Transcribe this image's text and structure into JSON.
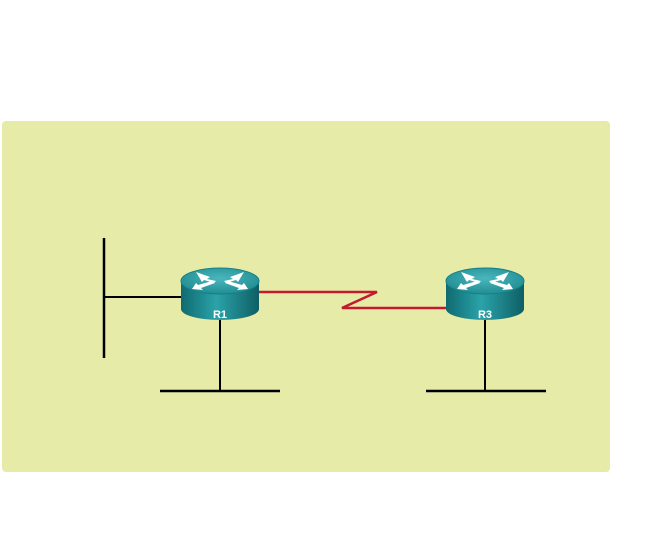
{
  "diagram": {
    "background_color": "#e6eba8",
    "link_color": "#c4192e",
    "line_color": "#000000",
    "routers": [
      {
        "id": "r1",
        "label": "R1",
        "color": "#1f8f95"
      },
      {
        "id": "r3",
        "label": "R3",
        "color": "#1f8f95"
      }
    ],
    "links": [
      {
        "from": "R1",
        "to": "R3",
        "type": "serial"
      }
    ]
  }
}
